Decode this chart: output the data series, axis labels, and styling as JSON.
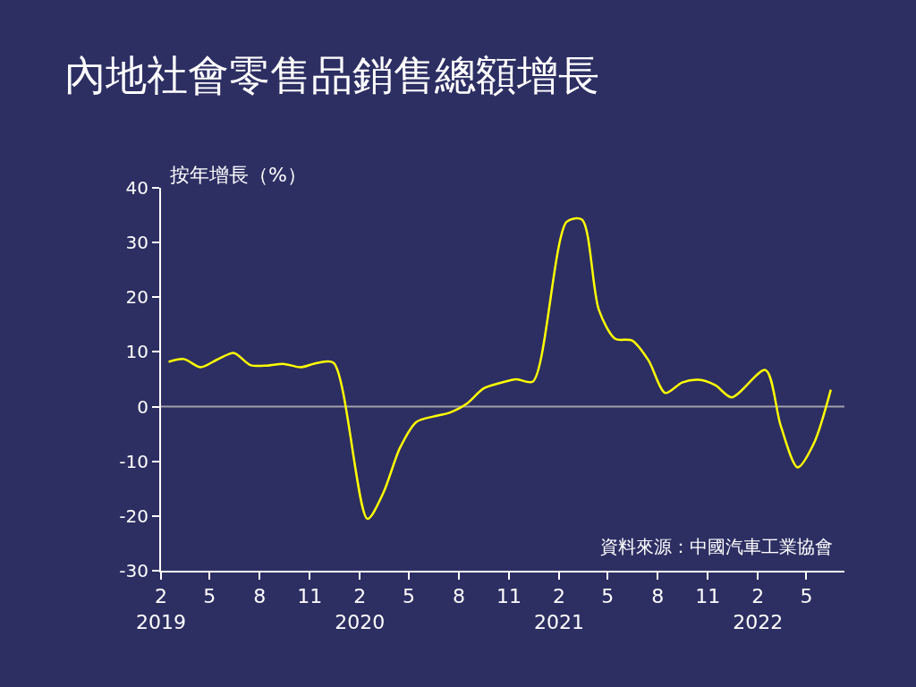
{
  "chart_data": {
    "type": "line",
    "title": "內地社會零售品銷售總額增長",
    "ylabel": "按年增長（%）",
    "annotations": [
      "資料來源：中國汽車工業協會"
    ],
    "x": [
      "2019-02-15",
      "2019-03-15",
      "2019-04-15",
      "2019-05-15",
      "2019-06-15",
      "2019-07-15",
      "2019-08-15",
      "2019-09-15",
      "2019-10-15",
      "2019-11-15",
      "2019-12-15",
      "2020-02-15",
      "2020-03-15",
      "2020-04-15",
      "2020-05-15",
      "2020-06-15",
      "2020-07-15",
      "2020-08-15",
      "2020-09-15",
      "2020-10-15",
      "2020-11-15",
      "2020-12-15",
      "2021-02-15",
      "2021-03-15",
      "2021-04-15",
      "2021-05-15",
      "2021-06-15",
      "2021-07-15",
      "2021-08-15",
      "2021-09-15",
      "2021-10-15",
      "2021-11-15",
      "2021-12-15",
      "2022-02-15",
      "2022-03-15",
      "2022-04-15",
      "2022-05-15",
      "2022-06-15"
    ],
    "series": [
      {
        "color": "#ffff00",
        "values": [
          8.2,
          8.7,
          7.2,
          8.6,
          9.8,
          7.6,
          7.5,
          7.8,
          7.2,
          8.0,
          8.0,
          -20.5,
          -15.8,
          -7.5,
          -2.8,
          -1.8,
          -1.1,
          0.5,
          3.3,
          4.3,
          5.0,
          4.6,
          33.8,
          34.2,
          17.7,
          12.4,
          12.1,
          8.5,
          2.5,
          4.4,
          4.9,
          3.9,
          1.7,
          6.7,
          -3.5,
          -11.1,
          -6.7,
          3.1
        ]
      }
    ],
    "xlim": [
      "2019-02-01",
      "2022-07-10"
    ],
    "xticks": [
      {
        "value": "2019-02-01",
        "label": "2\n2019"
      },
      {
        "value": "2019-05-01",
        "label": "5"
      },
      {
        "value": "2019-08-01",
        "label": "8"
      },
      {
        "value": "2019-11-01",
        "label": "11"
      },
      {
        "value": "2020-02-01",
        "label": "2\n2020"
      },
      {
        "value": "2020-05-01",
        "label": "5"
      },
      {
        "value": "2020-08-01",
        "label": "8"
      },
      {
        "value": "2020-11-01",
        "label": "11"
      },
      {
        "value": "2021-02-01",
        "label": "2\n2021"
      },
      {
        "value": "2021-05-01",
        "label": "5"
      },
      {
        "value": "2021-08-01",
        "label": "8"
      },
      {
        "value": "2021-11-01",
        "label": "11"
      },
      {
        "value": "2022-02-01",
        "label": "2\n2022"
      },
      {
        "value": "2022-05-01",
        "label": "5"
      }
    ],
    "ylim": [
      -30,
      40
    ],
    "yticks": [
      -30,
      -20,
      -10,
      0,
      10,
      20,
      30,
      40
    ],
    "ref_lines": [
      {
        "axis": "y",
        "value": 0,
        "color": "#a0a0a8"
      }
    ],
    "grid": false,
    "legend": false,
    "marker": "none",
    "line_style": "solid"
  }
}
